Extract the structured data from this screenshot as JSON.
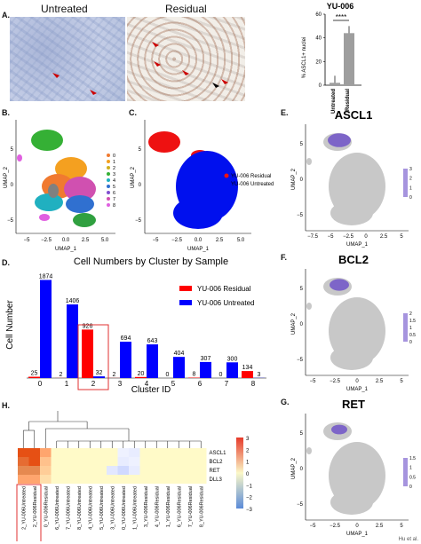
{
  "panels": {
    "A": {
      "label": "A.",
      "untreated_title": "Untreated",
      "residual_title": "Residual",
      "bar_title": "YU-006",
      "bar_ylabel": "% ASCL1+ nuclei",
      "significance": "****",
      "yticks": [
        "0",
        "20",
        "40",
        "60"
      ],
      "categories": [
        "Untreated",
        "Residual"
      ],
      "values": [
        2,
        44
      ]
    },
    "B": {
      "label": "B.",
      "ylabel": "UMAP_2",
      "xlabel": "UMAP_1",
      "xticks": [
        "−5",
        "−2.5",
        "0.0",
        "2.5",
        "5.0"
      ],
      "yticks": [
        "5",
        "0",
        "−5"
      ],
      "legend": [
        "0",
        "1",
        "2",
        "3",
        "4",
        "5",
        "6",
        "7",
        "8"
      ]
    },
    "C": {
      "label": "C.",
      "ylabel": "UMAP_2",
      "xlabel": "UMAP_1",
      "xticks": [
        "−5",
        "−2.5",
        "0.0",
        "2.5",
        "5.0"
      ],
      "yticks": [
        "5",
        "0",
        "−5"
      ],
      "legend": [
        "YU-006 Residual",
        "YU-006 Untreated"
      ]
    },
    "E": {
      "label": "E.",
      "title": "ASCL1",
      "ylabel": "UMAP_2",
      "xlabel": "UMAP_1",
      "xticks": [
        "−7.5",
        "−5",
        "−2.5",
        "0",
        "2.5",
        "5"
      ],
      "yticks": [
        "5",
        "0",
        "−5"
      ],
      "scale": [
        "3",
        "2",
        "1",
        "0"
      ]
    },
    "F": {
      "label": "F.",
      "title": "BCL2",
      "ylabel": "UMAP_2",
      "xlabel": "UMAP_1",
      "xticks": [
        "−5",
        "−2.5",
        "0",
        "2.5",
        "5"
      ],
      "yticks": [
        "5",
        "0",
        "−5"
      ],
      "scale": [
        "2",
        "1.5",
        "1",
        "0.5",
        "0"
      ]
    },
    "G": {
      "label": "G.",
      "title": "RET",
      "ylabel": "UMAP_2",
      "xlabel": "UMAP_1",
      "xticks": [
        "−5",
        "−2.5",
        "0",
        "2.5",
        "5"
      ],
      "yticks": [
        "5",
        "0",
        "−5"
      ],
      "scale": [
        "1.5",
        "1",
        "0.5",
        "0"
      ]
    },
    "D": {
      "label": "D."
    },
    "H": {
      "label": "H.",
      "genes": [
        "ASCL1",
        "BCL2",
        "RET",
        "DLL3"
      ],
      "columns": [
        "2_YU-006Untreated",
        "2_YU-006Residual",
        "0_YU-006Residual",
        "6_YU-006Untreated",
        "7_YU-006Untreated",
        "8_YU-006Untreated",
        "4_YU-006Untreated",
        "5_YU-006Untreated",
        "3_YU-006Untreated",
        "0_YU-006Untreated",
        "1_YU-006Untreated",
        "3_YU-006Residual",
        "4_YU-006Residual",
        "1_YU-006Residual",
        "6_YU-006Residual",
        "7_YU-006Residual",
        "8_YU-006Residual"
      ],
      "scale": [
        "3",
        "2",
        "1",
        "0",
        "−1",
        "−2",
        "−3"
      ]
    }
  },
  "chart_data": [
    {
      "type": "bar",
      "title": "YU-006",
      "categories": [
        "Untreated",
        "Residual"
      ],
      "values": [
        2,
        44
      ],
      "ylabel": "% ASCL1+ nuclei",
      "ylim": [
        0,
        60
      ]
    },
    {
      "type": "bar",
      "title": "Cell Numbers by Cluster by Sample",
      "xlabel": "Cluster ID",
      "ylabel": "Cell Number",
      "categories": [
        "0",
        "1",
        "2",
        "3",
        "4",
        "5",
        "6",
        "7",
        "8"
      ],
      "ylim": [
        0,
        2000
      ],
      "legend_position": "top-right",
      "series": [
        {
          "name": "YU-006 Residual",
          "color": "#ff0000",
          "values": [
            25,
            2,
            926,
            2,
            20,
            0,
            8,
            0,
            134
          ]
        },
        {
          "name": "YU-006 Untreated",
          "color": "#0000ff",
          "values": [
            1874,
            1406,
            32,
            694,
            643,
            404,
            307,
            300,
            3
          ]
        }
      ]
    },
    {
      "type": "heatmap",
      "rows": [
        "ASCL1",
        "BCL2",
        "RET",
        "DLL3"
      ],
      "columns": [
        "2_YU-006Untreated",
        "2_YU-006Residual",
        "0_YU-006Residual",
        "6_YU-006Untreated",
        "7_YU-006Untreated",
        "8_YU-006Untreated",
        "4_YU-006Untreated",
        "5_YU-006Untreated",
        "3_YU-006Untreated",
        "0_YU-006Untreated",
        "1_YU-006Untreated",
        "3_YU-006Residual",
        "4_YU-006Residual",
        "1_YU-006Residual",
        "6_YU-006Residual",
        "7_YU-006Residual",
        "8_YU-006Residual"
      ],
      "values": [
        [
          3,
          3.5,
          1.5,
          0,
          0,
          0,
          0,
          0,
          0,
          -0.2,
          -0.3,
          0,
          0,
          0,
          0,
          0,
          0
        ],
        [
          2.5,
          3,
          1,
          0,
          0,
          0,
          0,
          0,
          0,
          -0.3,
          -0.2,
          0,
          0,
          0,
          0,
          0,
          0
        ],
        [
          2,
          2,
          0.8,
          0,
          0,
          0,
          0,
          0,
          -0.4,
          -0.7,
          -0.3,
          0,
          0,
          0,
          0,
          0,
          0
        ],
        [
          1.5,
          1.5,
          0.5,
          0,
          0,
          0,
          0,
          0,
          0,
          0,
          0,
          0,
          0,
          0,
          0,
          0,
          0
        ]
      ],
      "range": [
        -3,
        3
      ]
    }
  ],
  "credit": "Hu et al."
}
